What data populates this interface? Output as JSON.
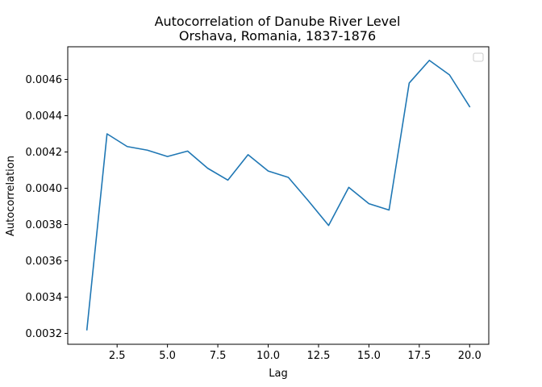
{
  "chart_data": {
    "type": "line",
    "title": "Autocorrelation of Danube River Level",
    "subtitle": "Orshava, Romania, 1837-1876",
    "xlabel": "Lag",
    "ylabel": "Autocorrelation",
    "xlim": [
      0.05,
      20.95
    ],
    "ylim": [
      0.00314,
      0.00478
    ],
    "xticks": [
      2.5,
      5.0,
      7.5,
      10.0,
      12.5,
      15.0,
      17.5,
      20.0
    ],
    "xtick_labels": [
      "2.5",
      "5.0",
      "7.5",
      "10.0",
      "12.5",
      "15.0",
      "17.5",
      "20.0"
    ],
    "yticks": [
      0.0032,
      0.0034,
      0.0036,
      0.0038,
      0.004,
      0.0042,
      0.0044,
      0.0046
    ],
    "ytick_labels": [
      "0.0032",
      "0.0034",
      "0.0036",
      "0.0038",
      "0.0040",
      "0.0042",
      "0.0044",
      "0.0046"
    ],
    "grid": false,
    "legend": {
      "placement": "top-right",
      "entries": []
    },
    "series": [
      {
        "color": "#1f77b4",
        "x": [
          1,
          2,
          3,
          4,
          5,
          6,
          7,
          8,
          9,
          10,
          11,
          12,
          13,
          14,
          15,
          16,
          17,
          18,
          19,
          20
        ],
        "values": [
          0.00322,
          0.0043,
          0.00423,
          0.00421,
          0.004175,
          0.004205,
          0.00411,
          0.004045,
          0.004185,
          0.004095,
          0.00406,
          0.00393,
          0.003795,
          0.004005,
          0.003915,
          0.00388,
          0.00458,
          0.004705,
          0.004625,
          0.00445
        ]
      }
    ]
  }
}
